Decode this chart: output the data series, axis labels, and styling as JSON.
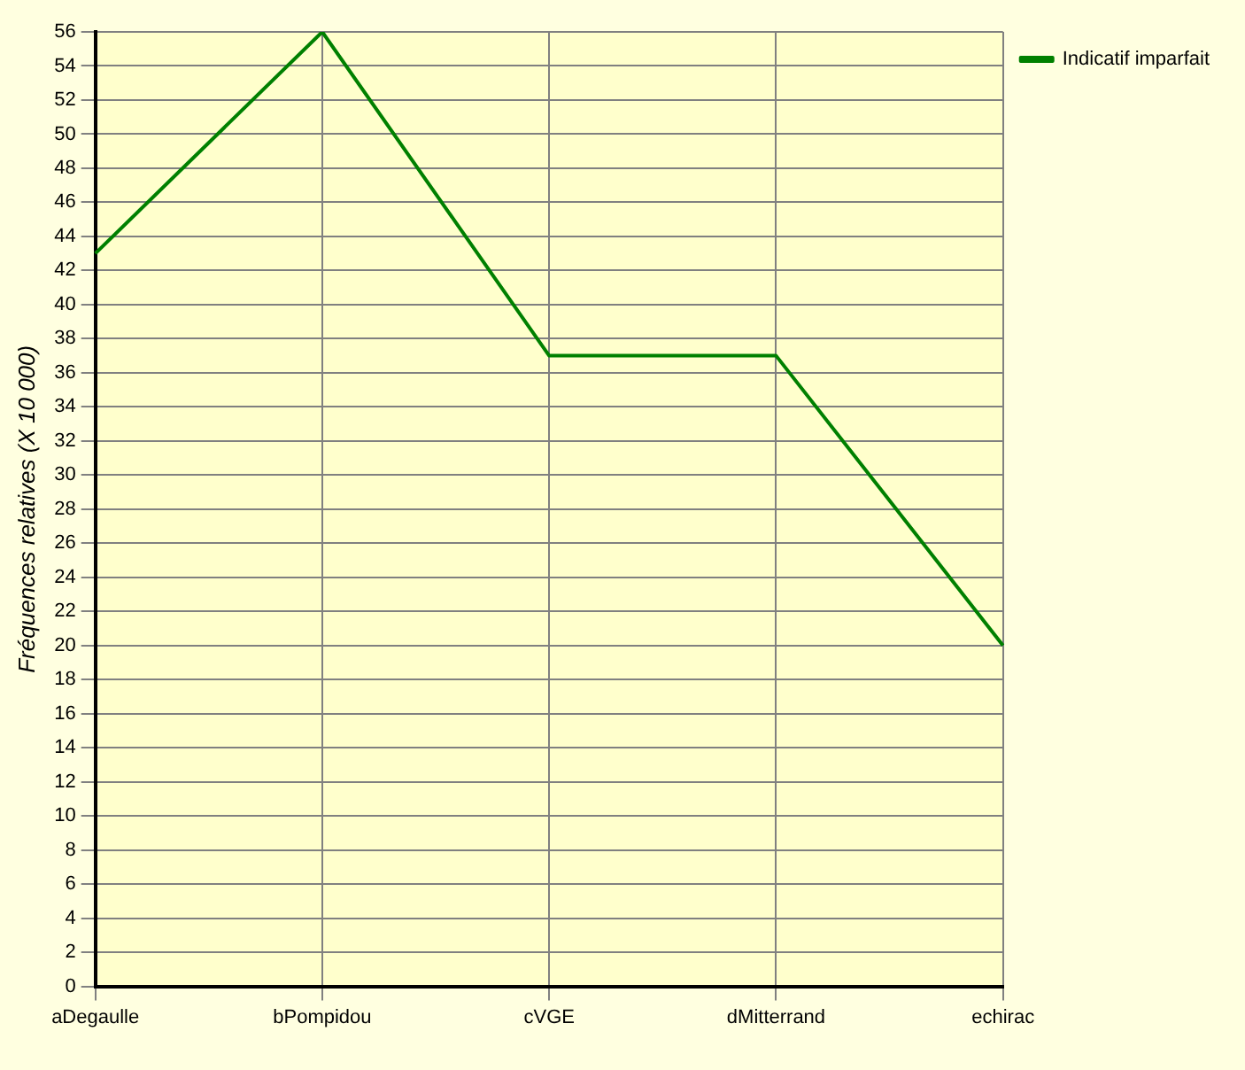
{
  "chart_data": {
    "type": "line",
    "ylabel": "Fréquences relatives (X 10 000)",
    "categories": [
      "aDegaulle",
      "bPompidou",
      "cVGE",
      "dMitterrand",
      "echirac"
    ],
    "series": [
      {
        "name": "Indicatif imparfait",
        "color": "#008000",
        "values": [
          43,
          56,
          37,
          37,
          20
        ]
      }
    ],
    "ylim": [
      0,
      56
    ],
    "yticks": [
      0,
      2,
      4,
      6,
      8,
      10,
      12,
      14,
      16,
      18,
      20,
      22,
      24,
      26,
      28,
      30,
      32,
      34,
      36,
      38,
      40,
      42,
      44,
      46,
      48,
      50,
      52,
      54,
      56
    ],
    "grid": true,
    "legend": "top right",
    "marker": "none",
    "line_style": "solid"
  }
}
